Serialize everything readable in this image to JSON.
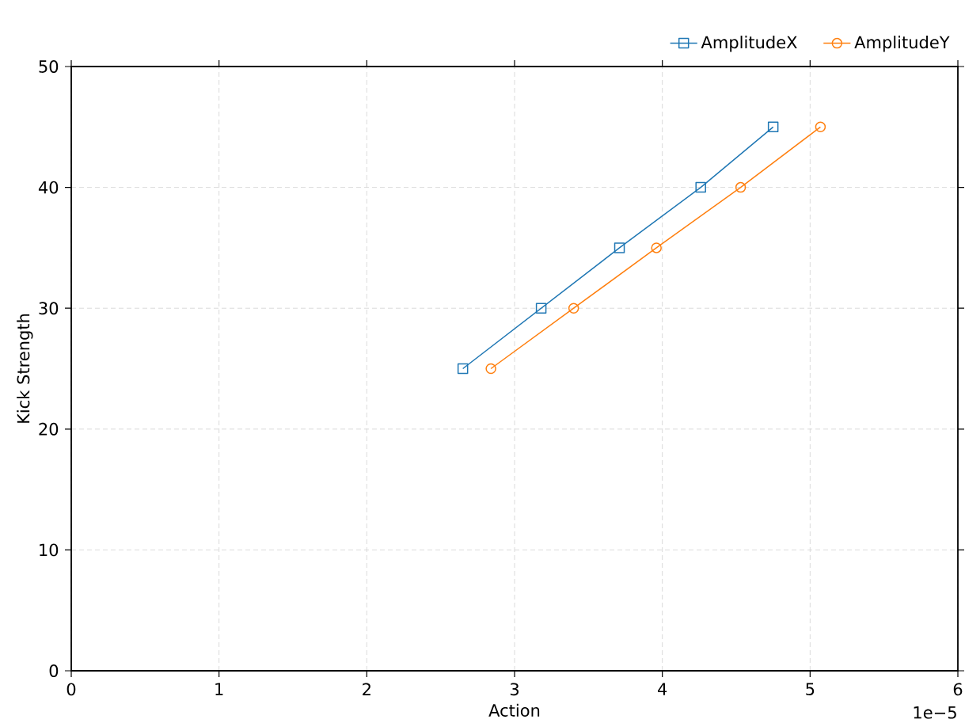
{
  "chart_data": {
    "type": "line",
    "xlabel": "Action",
    "ylabel": "Kick Strength",
    "xlim": [
      0,
      6
    ],
    "ylim": [
      0,
      50
    ],
    "xticks": [
      0,
      1,
      2,
      3,
      4,
      5,
      6
    ],
    "yticks": [
      0,
      10,
      20,
      30,
      40,
      50
    ],
    "grid": true,
    "legend": "top right",
    "line_style": "solid",
    "annotations": [
      "1e−5"
    ],
    "series": [
      {
        "name": "AmplitudeX",
        "color": "#1f77b4",
        "marker": "square",
        "x": [
          2.65,
          3.18,
          3.71,
          4.26,
          4.75
        ],
        "values": [
          25,
          30,
          35,
          40,
          45
        ]
      },
      {
        "name": "AmplitudeY",
        "color": "#ff7f0e",
        "marker": "circle",
        "x": [
          2.84,
          3.4,
          3.96,
          4.53,
          5.07
        ],
        "values": [
          25,
          30,
          35,
          40,
          45
        ]
      }
    ]
  }
}
